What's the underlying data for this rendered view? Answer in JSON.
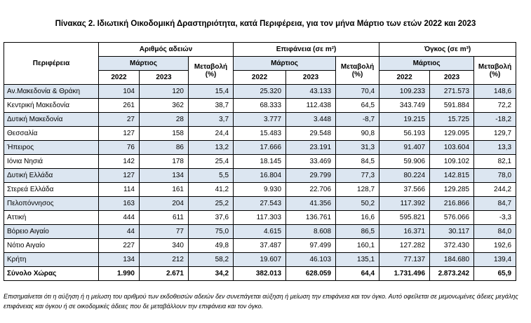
{
  "title": "Πίνακας 2. Ιδιωτική Οικοδομική Δραστηριότητα, κατά  Περιφέρεια, για τον μήνα Μάρτιο των ετών 2022 και 2023",
  "table": {
    "header": {
      "region": "Περιφέρεια",
      "groups": [
        "Αριθμός αδειών",
        "Επιφάνεια (σε m²)",
        "Όγκος (σε m³)"
      ],
      "month": [
        "Μάρτιος",
        "Μάρτιος",
        "Μάρτιος"
      ],
      "change": [
        "Μεταβολή (%)",
        "Μεταβολή (%)",
        "Μεταβολή (%)"
      ],
      "years": [
        "2022",
        "2023",
        "2022",
        "2023",
        "2022",
        "2023"
      ]
    },
    "rows": [
      [
        "Αν.Μακεδονία & Θράκη",
        "104",
        "120",
        "15,4",
        "25.320",
        "43.133",
        "70,4",
        "109.233",
        "271.573",
        "148,6"
      ],
      [
        "Κεντρική Μακεδονία",
        "261",
        "362",
        "38,7",
        "68.333",
        "112.438",
        "64,5",
        "343.749",
        "591.884",
        "72,2"
      ],
      [
        "Δυτική Μακεδονία",
        "27",
        "28",
        "3,7",
        "3.777",
        "3.448",
        "-8,7",
        "19.215",
        "15.725",
        "-18,2"
      ],
      [
        "Θεσσαλία",
        "127",
        "158",
        "24,4",
        "15.483",
        "29.548",
        "90,8",
        "56.193",
        "129.095",
        "129,7"
      ],
      [
        "Ήπειρος",
        "76",
        "86",
        "13,2",
        "17.666",
        "23.191",
        "31,3",
        "91.407",
        "103.604",
        "13,3"
      ],
      [
        "Ιόνια Νησιά",
        "142",
        "178",
        "25,4",
        "18.145",
        "33.469",
        "84,5",
        "59.906",
        "109.102",
        "82,1"
      ],
      [
        "Δυτική Ελλάδα",
        "127",
        "134",
        "5,5",
        "16.804",
        "29.799",
        "77,3",
        "80.224",
        "142.815",
        "78,0"
      ],
      [
        "Στερεά Ελλάδα",
        "114",
        "161",
        "41,2",
        "9.930",
        "22.706",
        "128,7",
        "37.566",
        "129.285",
        "244,2"
      ],
      [
        "Πελοπόννησος",
        "163",
        "204",
        "25,2",
        "27.543",
        "41.356",
        "50,2",
        "117.392",
        "216.866",
        "84,7"
      ],
      [
        "Αττική",
        "444",
        "611",
        "37,6",
        "117.303",
        "136.761",
        "16,6",
        "595.821",
        "576.066",
        "-3,3"
      ],
      [
        "Βόρειο Αιγαίο",
        "44",
        "77",
        "75,0",
        "4.615",
        "8.608",
        "86,5",
        "16.371",
        "30.117",
        "84,0"
      ],
      [
        "Νότιο Αιγαίο",
        "227",
        "340",
        "49,8",
        "37.487",
        "97.499",
        "160,1",
        "127.282",
        "372.430",
        "192,6"
      ],
      [
        "Κρήτη",
        "134",
        "212",
        "58,2",
        "19.607",
        "46.103",
        "135,1",
        "77.137",
        "184.680",
        "139,4"
      ],
      [
        "Σύνολο Χώρας",
        "1.990",
        "2.671",
        "34,2",
        "382.013",
        "628.059",
        "64,4",
        "1.731.496",
        "2.873.242",
        "65,9"
      ]
    ]
  },
  "footnote": "Επισημαίνεται ότι η αύξηση ή η μείωση του αριθμού των εκδοθεισών αδειών δεν συνεπάγεται αύξηση ή μείωση την επιφάνεια και τον όγκο. Αυτό οφείλεται σε μεμονωμένες άδειες μεγάλης επιφάνειας και όγκου ή σε οικοδομικές άδειες που δε μεταβάλλουν την επιφάνεια και τον όγκο."
}
